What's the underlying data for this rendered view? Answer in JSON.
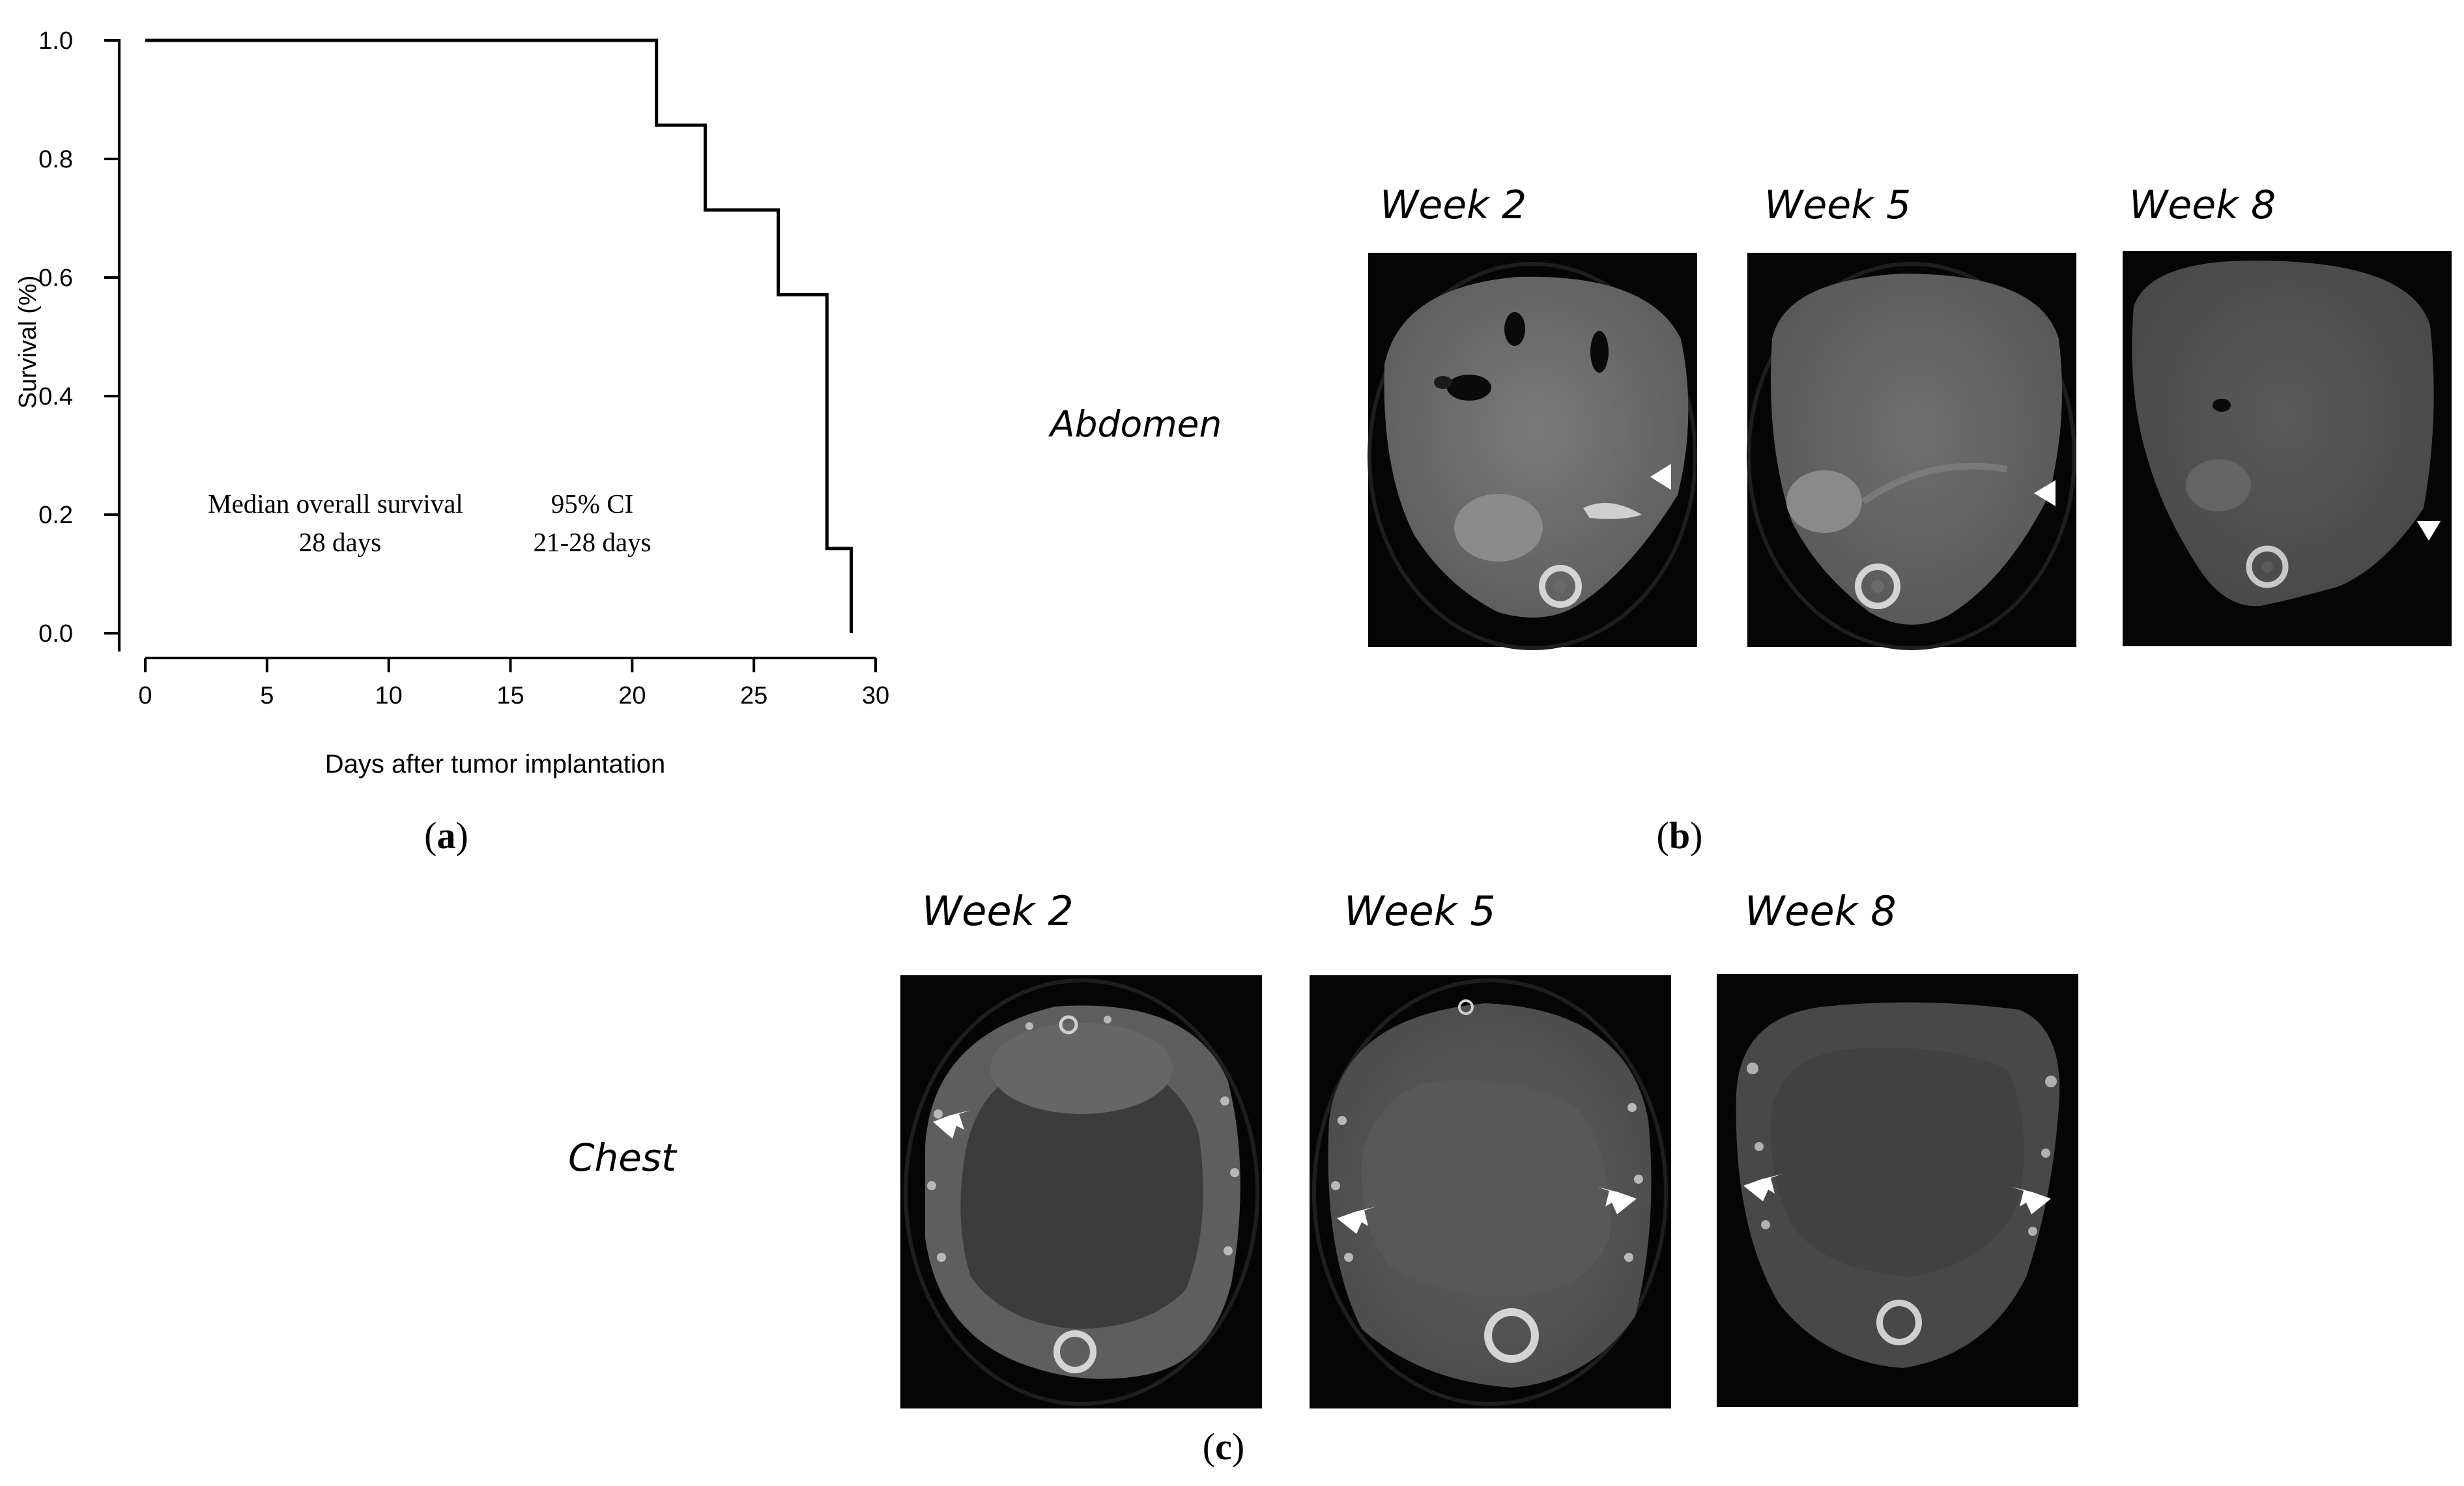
{
  "chart_data": {
    "type": "line",
    "title": "",
    "xlabel": "Days after tumor implantation",
    "ylabel": "Survival (%)",
    "xlim": [
      0,
      30
    ],
    "ylim": [
      0,
      1
    ],
    "xticks": [
      0,
      5,
      10,
      15,
      20,
      25,
      30
    ],
    "yticks": [
      "0.0",
      "0.2",
      "0.4",
      "0.6",
      "0.8",
      "1.0"
    ],
    "grid": false,
    "step": true,
    "series": [
      {
        "x": [
          0,
          21,
          23,
          26,
          28,
          29
        ],
        "y": [
          1.0,
          0.857,
          0.714,
          0.571,
          0.143,
          0.0
        ]
      }
    ],
    "annotations": {
      "median_label": "Median overall survival",
      "median_value": "28 days",
      "ci_label": "95% CI",
      "ci_value": "21-28 days"
    }
  },
  "panels": {
    "a_label": "(a)",
    "b_label": "(b)",
    "c_label": "(c)",
    "a_letter": "a",
    "b_letter": "b",
    "c_letter": "c",
    "paren_open": "(",
    "paren_close": ")"
  },
  "abdomen": {
    "label": "Abdomen",
    "weeks": [
      "Week 2",
      "Week 5",
      "Week 8"
    ]
  },
  "chest": {
    "label": "Chest",
    "weeks": [
      "Week 2",
      "Week 5",
      "Week 8"
    ]
  },
  "colors": {
    "line": "#000000",
    "scan_background": "#050505",
    "tissue": "#6e6e6e",
    "bone": "#d0d0d0",
    "marker": "#ffffff"
  }
}
